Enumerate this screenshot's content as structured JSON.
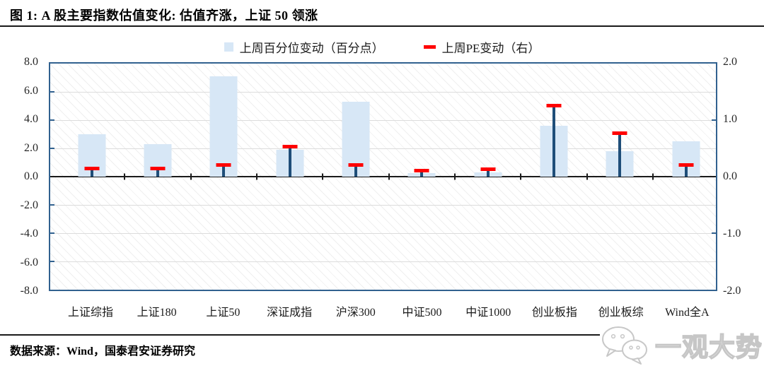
{
  "title": "图 1:  A 股主要指数估值变化:  估值齐涨，上证 50 领涨",
  "legend": [
    {
      "label": "上周百分位变动（百分点）",
      "swatch": "bar-swatch",
      "color": "#D7E7F6"
    },
    {
      "label": "上周PE变动（右）",
      "swatch": "dash-swatch",
      "color": "#FF0000"
    }
  ],
  "footer": {
    "source": "数据来源：Wind，国泰君安证券研究"
  },
  "watermark": {
    "icon": "wechat-bubbles-icon",
    "text": "一观大势"
  },
  "chart_data": {
    "type": "bar",
    "subtype": "combo: bars on left axis + stem-and-dash markers on right axis",
    "categories": [
      "上证综指",
      "上证180",
      "上证50",
      "深证成指",
      "沪深300",
      "中证500",
      "中证1000",
      "创业板指",
      "创业板综",
      "Wind全A"
    ],
    "series": [
      {
        "name": "上周百分位变动（百分点）",
        "type": "bar",
        "axis": "left",
        "values": [
          3.0,
          2.3,
          7.1,
          1.9,
          5.3,
          0.25,
          0.3,
          3.6,
          1.8,
          2.5
        ]
      },
      {
        "name": "上周PE变动（右）",
        "type": "stem-marker",
        "axis": "right",
        "values": [
          0.14,
          0.14,
          0.2,
          0.53,
          0.2,
          0.1,
          0.13,
          1.25,
          0.76,
          0.2
        ]
      }
    ],
    "left_axis": {
      "min": -8,
      "max": 8,
      "step": 2,
      "ticks": [
        "8.0",
        "6.0",
        "4.0",
        "2.0",
        "0.0",
        "-2.0",
        "-4.0",
        "-6.0",
        "-8.0"
      ]
    },
    "right_axis": {
      "min": -2,
      "max": 2,
      "step": 1,
      "ticks": [
        "2.0",
        "1.0",
        "0.0",
        "-1.0",
        "-2.0"
      ]
    },
    "grid": true,
    "legend_position": "top-center",
    "colors": {
      "bar": "#D7E7F6",
      "stem": "#1F4E79",
      "marker": "#FF0000",
      "plot_border": "#31618F",
      "gridline": "#dcdcdc",
      "zero_line": "#1a1a1a"
    },
    "layout": {
      "first_center_pct": 6.24,
      "center_step_pct": 9.916
    }
  }
}
